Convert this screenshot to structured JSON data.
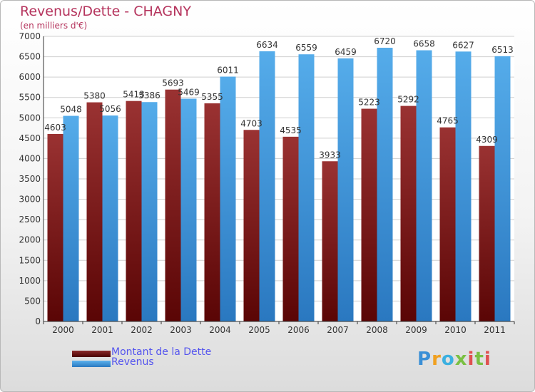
{
  "header": {
    "title": "Revenus/Dette - CHAGNY",
    "subtitle": "(en milliers d'€)"
  },
  "legend": {
    "debt_label": "Montant de la Dette",
    "revenue_label": "Revenus"
  },
  "logo": {
    "text": "Proxiti"
  },
  "colors": {
    "debt": "#7a1e1e",
    "revenue": "#4aa3e6",
    "axis_text": "#333333",
    "title": "#b5345d",
    "legend_text": "#5555ee"
  },
  "chart_data": {
    "type": "bar",
    "title": "Revenus/Dette - CHAGNY",
    "subtitle": "(en milliers d'€)",
    "categories": [
      "2000",
      "2001",
      "2002",
      "2003",
      "2004",
      "2005",
      "2006",
      "2007",
      "2008",
      "2009",
      "2010",
      "2011"
    ],
    "series": [
      {
        "name": "Montant de la Dette",
        "values": [
          4603,
          5380,
          5413,
          5693,
          5355,
          4703,
          4535,
          3933,
          5223,
          5292,
          4765,
          4309
        ]
      },
      {
        "name": "Revenus",
        "values": [
          5048,
          5056,
          5386,
          5469,
          6011,
          6634,
          6559,
          6459,
          6720,
          6658,
          6627,
          6513
        ]
      }
    ],
    "ylim": [
      0,
      7000
    ],
    "yticks": [
      0,
      500,
      1000,
      1500,
      2000,
      2500,
      3000,
      3500,
      4000,
      4500,
      5000,
      5500,
      6000,
      6500,
      7000
    ],
    "grid": true,
    "legend_position": "bottom-left"
  }
}
